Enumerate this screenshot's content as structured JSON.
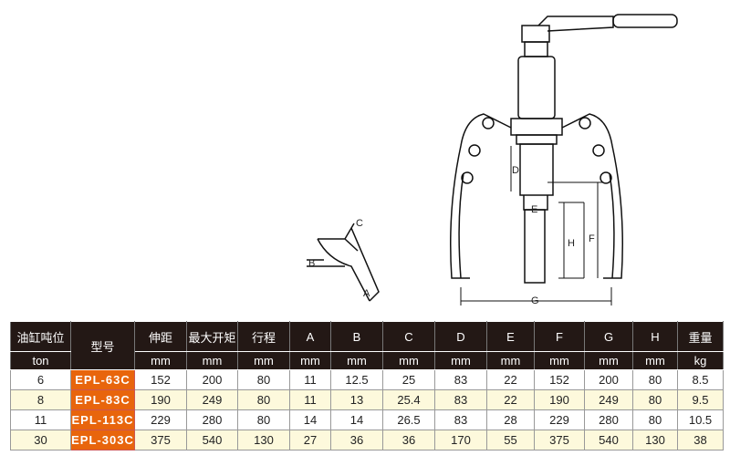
{
  "diagram": {
    "labels": [
      "A",
      "B",
      "C",
      "D",
      "E",
      "F",
      "G",
      "H"
    ]
  },
  "table": {
    "header_top": [
      "油缸吨位",
      "型号",
      "伸距",
      "最大开矩",
      "行程",
      "A",
      "B",
      "C",
      "D",
      "E",
      "F",
      "G",
      "H",
      "重量"
    ],
    "header_units": [
      "ton",
      "mm",
      "mm",
      "mm",
      "mm",
      "mm",
      "mm",
      "mm",
      "mm",
      "mm",
      "mm",
      "mm",
      "kg"
    ],
    "rows": [
      [
        "6",
        "EPL-63C",
        "152",
        "200",
        "80",
        "11",
        "12.5",
        "25",
        "83",
        "22",
        "152",
        "200",
        "80",
        "8.5"
      ],
      [
        "8",
        "EPL-83C",
        "190",
        "249",
        "80",
        "11",
        "13",
        "25.4",
        "83",
        "22",
        "190",
        "249",
        "80",
        "9.5"
      ],
      [
        "11",
        "EPL-113C",
        "229",
        "280",
        "80",
        "14",
        "14",
        "26.5",
        "83",
        "28",
        "229",
        "280",
        "80",
        "10.5"
      ],
      [
        "30",
        "EPL-303C",
        "375",
        "540",
        "130",
        "27",
        "36",
        "36",
        "170",
        "55",
        "375",
        "540",
        "130",
        "38"
      ]
    ],
    "colors": {
      "header_bg": "#231815",
      "model_bg": "#e8650c",
      "alt_row_bg": "#fdf9dc"
    }
  }
}
